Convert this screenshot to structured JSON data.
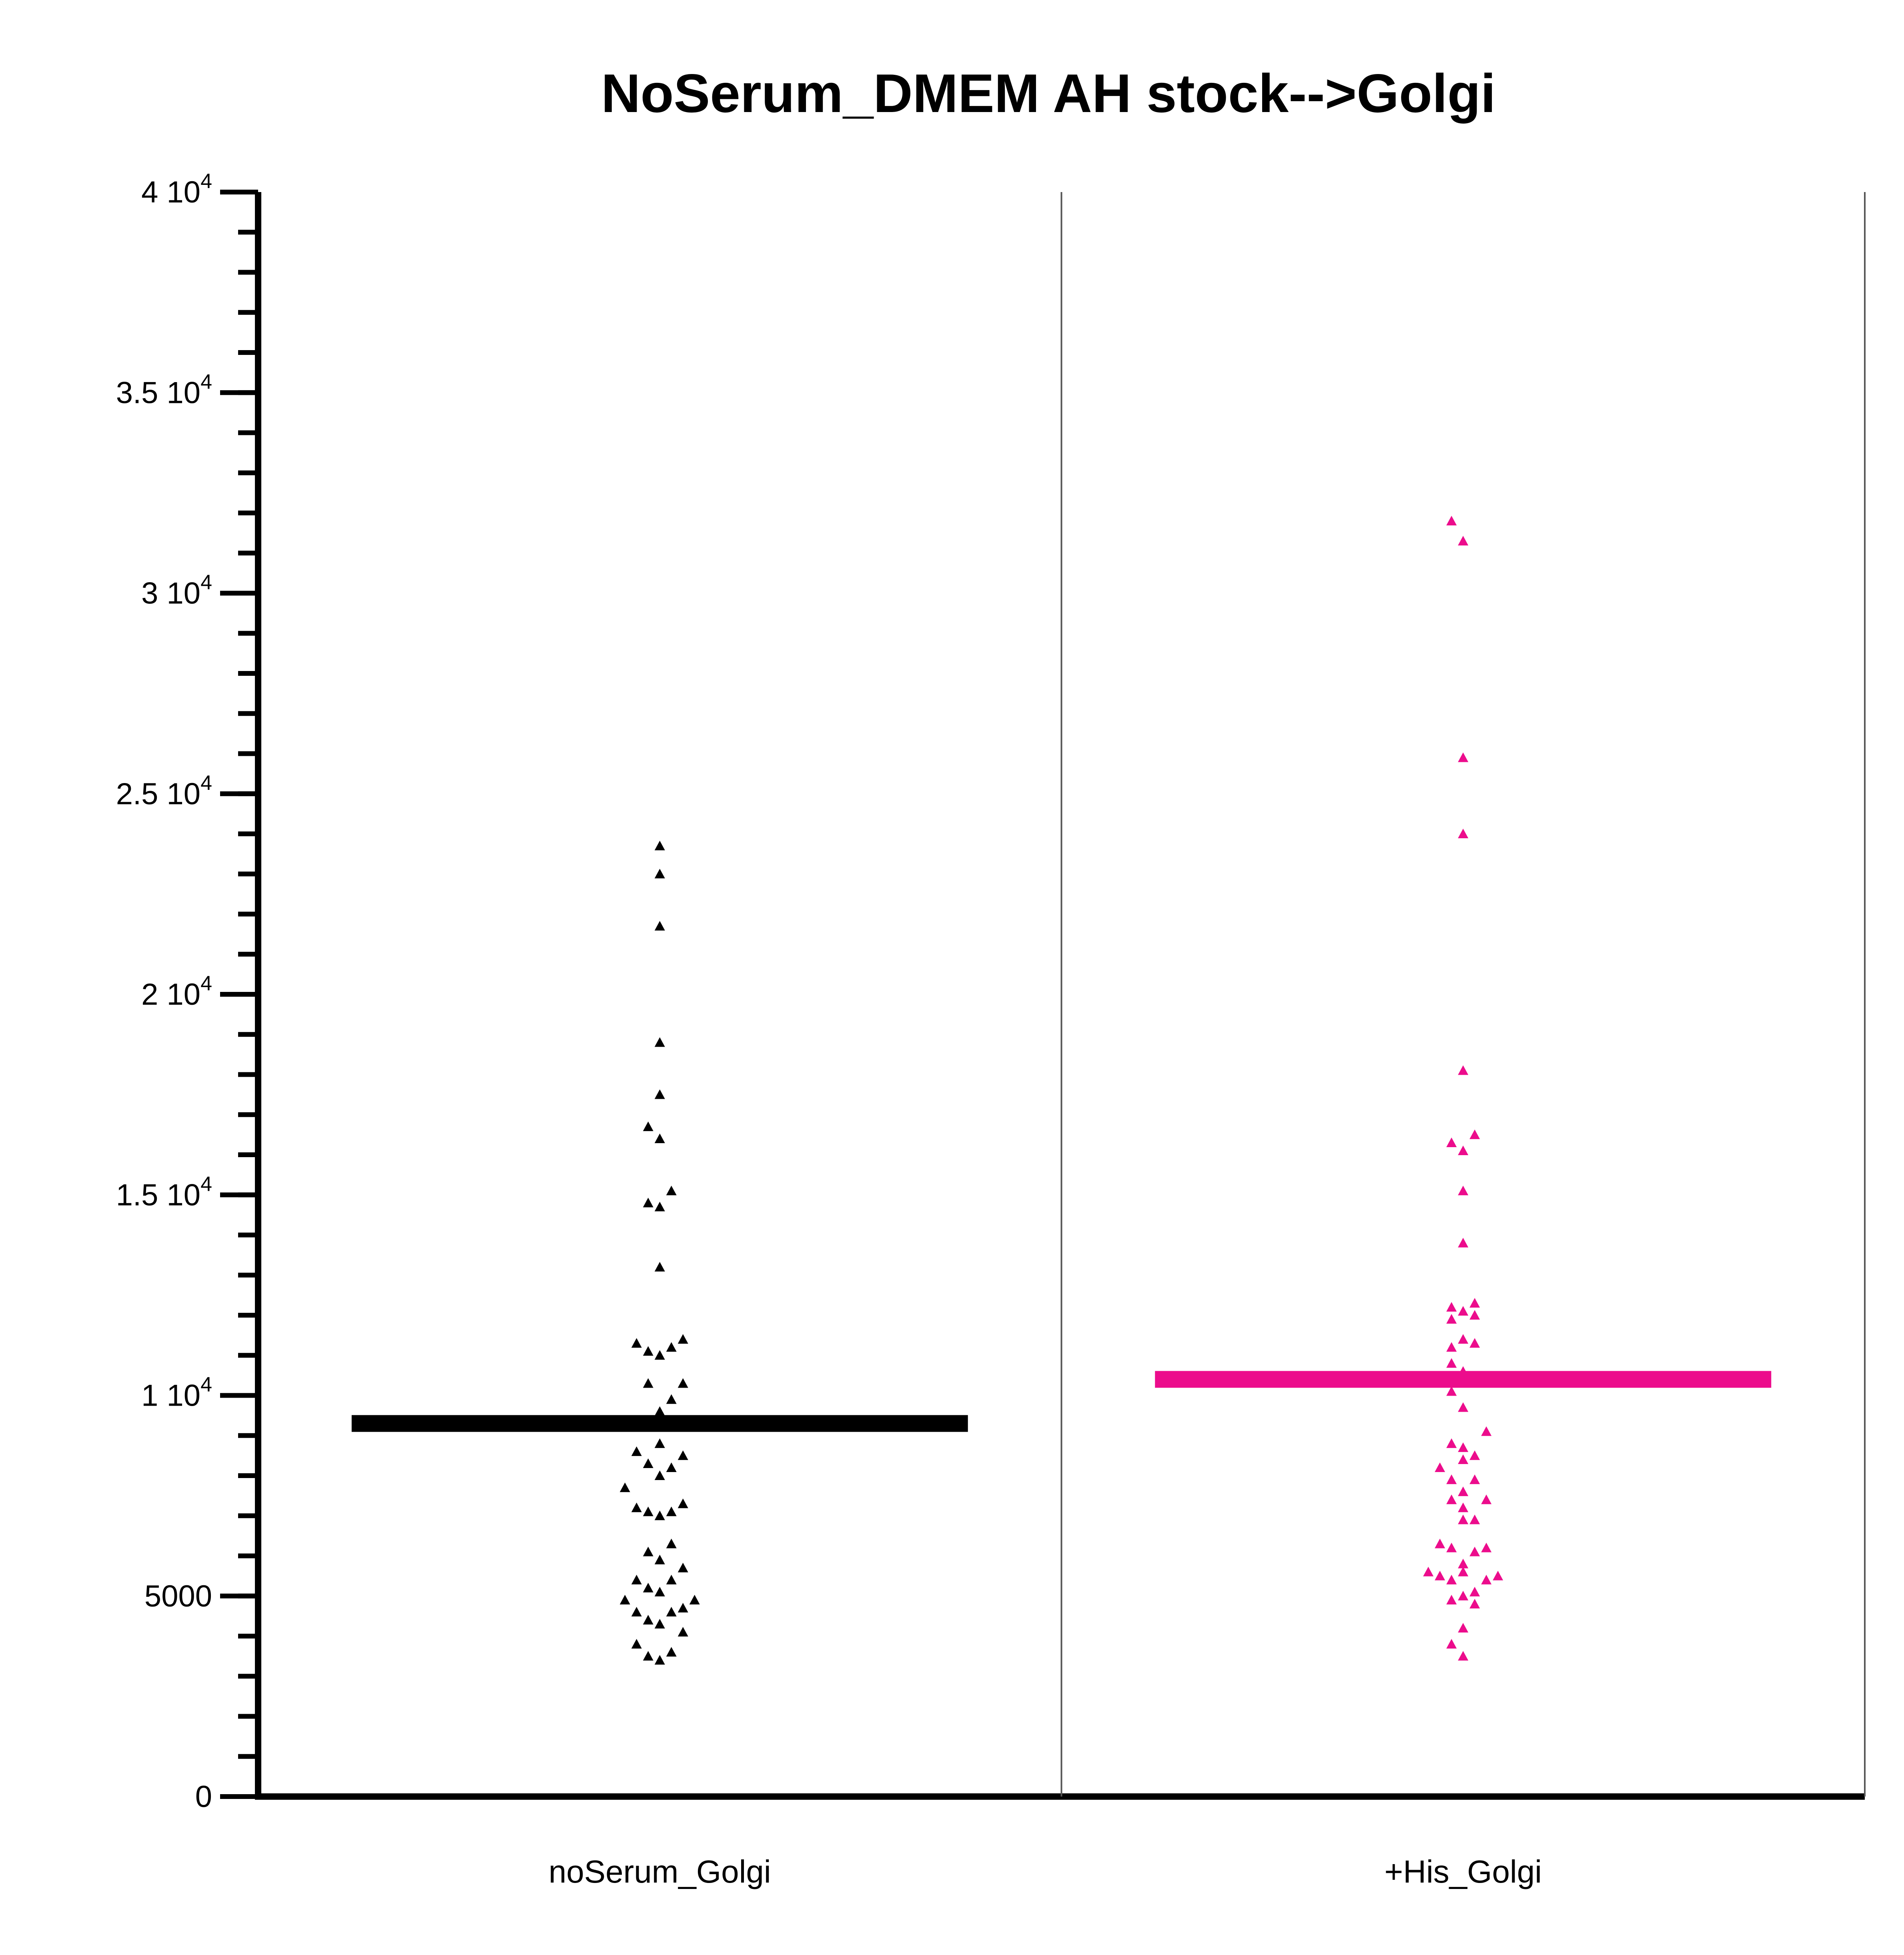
{
  "chart_data": {
    "type": "scatter",
    "title": "NoSerum_DMEM AH stock-->Golgi",
    "xlabel": "",
    "ylabel": "",
    "ylim": [
      0,
      40000
    ],
    "y_ticks": [
      {
        "value": 0,
        "mantissa": "0",
        "exp": ""
      },
      {
        "value": 5000,
        "mantissa": "5000",
        "exp": ""
      },
      {
        "value": 10000,
        "mantissa": "1 10",
        "exp": "4"
      },
      {
        "value": 15000,
        "mantissa": "1.5 10",
        "exp": "4"
      },
      {
        "value": 20000,
        "mantissa": "2 10",
        "exp": "4"
      },
      {
        "value": 25000,
        "mantissa": "2.5 10",
        "exp": "4"
      },
      {
        "value": 30000,
        "mantissa": "3 10",
        "exp": "4"
      },
      {
        "value": 35000,
        "mantissa": "3.5 10",
        "exp": "4"
      },
      {
        "value": 40000,
        "mantissa": "4 10",
        "exp": "4"
      }
    ],
    "minor_tick_step": 1000,
    "grid": false,
    "categories": [
      "noSerum_Golgi",
      "+His_Golgi"
    ],
    "series": [
      {
        "color": "#000000",
        "mean": 9300,
        "points": [
          {
            "off": 0,
            "y": 23700
          },
          {
            "off": 0,
            "y": 23000
          },
          {
            "off": 0,
            "y": 21700
          },
          {
            "off": 0,
            "y": 18800
          },
          {
            "off": 0,
            "y": 17500
          },
          {
            "off": -0.5,
            "y": 16700
          },
          {
            "off": 0,
            "y": 16400
          },
          {
            "off": -0.5,
            "y": 14800
          },
          {
            "off": 0,
            "y": 14700
          },
          {
            "off": 0.5,
            "y": 15100
          },
          {
            "off": 0,
            "y": 13200
          },
          {
            "off": -1,
            "y": 11300
          },
          {
            "off": -0.5,
            "y": 11100
          },
          {
            "off": 0,
            "y": 11000
          },
          {
            "off": 0.5,
            "y": 11200
          },
          {
            "off": 1,
            "y": 11400
          },
          {
            "off": -0.5,
            "y": 10300
          },
          {
            "off": 0.5,
            "y": 9900
          },
          {
            "off": 1,
            "y": 10300
          },
          {
            "off": 0,
            "y": 9600
          },
          {
            "off": 0,
            "y": 8800
          },
          {
            "off": -1,
            "y": 8600
          },
          {
            "off": -0.5,
            "y": 8300
          },
          {
            "off": 0,
            "y": 8000
          },
          {
            "off": 0.5,
            "y": 8200
          },
          {
            "off": 1,
            "y": 8500
          },
          {
            "off": -1.5,
            "y": 7700
          },
          {
            "off": -1,
            "y": 7200
          },
          {
            "off": -0.5,
            "y": 7100
          },
          {
            "off": 0,
            "y": 7000
          },
          {
            "off": 0.5,
            "y": 7100
          },
          {
            "off": 1,
            "y": 7300
          },
          {
            "off": -0.5,
            "y": 6100
          },
          {
            "off": 0,
            "y": 5900
          },
          {
            "off": 0.5,
            "y": 6300
          },
          {
            "off": 1,
            "y": 5700
          },
          {
            "off": -1,
            "y": 5400
          },
          {
            "off": -0.5,
            "y": 5200
          },
          {
            "off": 0,
            "y": 5100
          },
          {
            "off": 0.5,
            "y": 5400
          },
          {
            "off": -1.5,
            "y": 4900
          },
          {
            "off": -1,
            "y": 4600
          },
          {
            "off": -0.5,
            "y": 4400
          },
          {
            "off": 0,
            "y": 4300
          },
          {
            "off": 0.5,
            "y": 4600
          },
          {
            "off": 1,
            "y": 4700
          },
          {
            "off": 1.5,
            "y": 4900
          },
          {
            "off": 1,
            "y": 4100
          },
          {
            "off": -1,
            "y": 3800
          },
          {
            "off": -0.5,
            "y": 3500
          },
          {
            "off": 0,
            "y": 3400
          },
          {
            "off": 0.5,
            "y": 3600
          }
        ]
      },
      {
        "color": "#EC0C8C",
        "mean": 10400,
        "points": [
          {
            "off": -0.5,
            "y": 31800
          },
          {
            "off": 0,
            "y": 31300
          },
          {
            "off": 0,
            "y": 25900
          },
          {
            "off": 0,
            "y": 24000
          },
          {
            "off": 0,
            "y": 18100
          },
          {
            "off": -0.5,
            "y": 16300
          },
          {
            "off": 0,
            "y": 16100
          },
          {
            "off": 0.5,
            "y": 16500
          },
          {
            "off": 0,
            "y": 15100
          },
          {
            "off": 0,
            "y": 13800
          },
          {
            "off": -0.5,
            "y": 12200
          },
          {
            "off": -0.5,
            "y": 11900
          },
          {
            "off": 0,
            "y": 12100
          },
          {
            "off": 0.5,
            "y": 12300
          },
          {
            "off": 0.5,
            "y": 12000
          },
          {
            "off": -0.5,
            "y": 11200
          },
          {
            "off": 0,
            "y": 11400
          },
          {
            "off": 0.5,
            "y": 11300
          },
          {
            "off": -0.5,
            "y": 10800
          },
          {
            "off": 0,
            "y": 10600
          },
          {
            "off": 0.5,
            "y": 10400
          },
          {
            "off": -0.5,
            "y": 10100
          },
          {
            "off": 0,
            "y": 9700
          },
          {
            "off": 1,
            "y": 9100
          },
          {
            "off": -0.5,
            "y": 8800
          },
          {
            "off": 0,
            "y": 8700
          },
          {
            "off": 0.5,
            "y": 8500
          },
          {
            "off": 0,
            "y": 8400
          },
          {
            "off": -1,
            "y": 8200
          },
          {
            "off": -0.5,
            "y": 7900
          },
          {
            "off": 0.5,
            "y": 7900
          },
          {
            "off": 0,
            "y": 7600
          },
          {
            "off": -0.5,
            "y": 7400
          },
          {
            "off": 1,
            "y": 7400
          },
          {
            "off": 0,
            "y": 7200
          },
          {
            "off": 0,
            "y": 6900
          },
          {
            "off": 0.5,
            "y": 6900
          },
          {
            "off": -1,
            "y": 6300
          },
          {
            "off": -0.5,
            "y": 6200
          },
          {
            "off": 0.5,
            "y": 6100
          },
          {
            "off": 1,
            "y": 6200
          },
          {
            "off": 0,
            "y": 5800
          },
          {
            "off": -1.5,
            "y": 5600
          },
          {
            "off": -1,
            "y": 5500
          },
          {
            "off": -0.5,
            "y": 5400
          },
          {
            "off": 0,
            "y": 5600
          },
          {
            "off": 1,
            "y": 5400
          },
          {
            "off": 1.5,
            "y": 5500
          },
          {
            "off": -0.5,
            "y": 4900
          },
          {
            "off": 0,
            "y": 5000
          },
          {
            "off": 0.5,
            "y": 5100
          },
          {
            "off": 0.5,
            "y": 4800
          },
          {
            "off": 0,
            "y": 4200
          },
          {
            "off": -0.5,
            "y": 3800
          },
          {
            "off": 0,
            "y": 3500
          }
        ]
      }
    ]
  }
}
